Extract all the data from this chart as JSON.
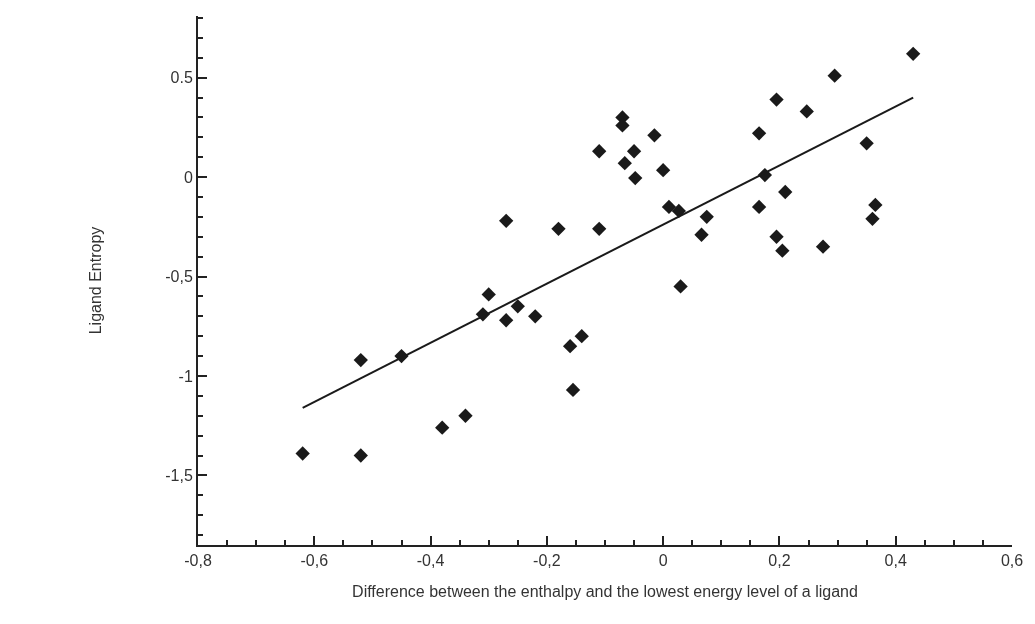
{
  "chart_data": {
    "type": "scatter",
    "xlabel": "Difference between the enthalpy and the lowest energy level of a ligand",
    "ylabel": "Ligand Entropy",
    "x": [
      -0.62,
      -0.52,
      -0.52,
      -0.45,
      -0.38,
      -0.34,
      -0.3,
      -0.31,
      -0.27,
      -0.25,
      -0.22,
      -0.27,
      -0.18,
      -0.11,
      -0.16,
      -0.14,
      -0.155,
      -0.11,
      -0.07,
      -0.07,
      -0.05,
      -0.066,
      -0.048,
      -0.015,
      0.0,
      0.01,
      0.027,
      0.075,
      0.066,
      0.03,
      0.43,
      0.295,
      0.195,
      0.247,
      0.165,
      0.35,
      0.175,
      0.21,
      0.165,
      0.195,
      0.205,
      0.275,
      0.365,
      0.36
    ],
    "series": [
      {
        "color": "#1a1a1a",
        "marker": "diamond",
        "values": [
          -1.39,
          -1.4,
          -0.92,
          -0.9,
          -1.26,
          -1.2,
          -0.59,
          -0.69,
          -0.72,
          -0.65,
          -0.7,
          -0.22,
          -0.26,
          -0.26,
          -0.85,
          -0.8,
          -1.07,
          0.13,
          0.3,
          0.26,
          0.13,
          0.07,
          -0.005,
          0.21,
          0.035,
          -0.15,
          -0.17,
          -0.2,
          -0.29,
          -0.55,
          0.62,
          0.51,
          0.39,
          0.33,
          0.22,
          0.17,
          0.01,
          -0.075,
          -0.15,
          -0.3,
          -0.37,
          -0.35,
          -0.14,
          -0.21
        ]
      },
      {
        "type": "line",
        "color": "#1a1a1a",
        "x": [
          -0.62,
          0.43
        ],
        "values": [
          -1.16,
          0.4
        ]
      }
    ],
    "xlim": [
      -0.8,
      0.6
    ],
    "ylim": [
      -1.85,
      0.81
    ],
    "xticks": [
      {
        "value": -0.8,
        "label": "-0,8"
      },
      {
        "value": -0.75,
        "label": null
      },
      {
        "value": -0.7,
        "label": null
      },
      {
        "value": -0.65,
        "label": null
      },
      {
        "value": -0.6,
        "label": "-0,6"
      },
      {
        "value": -0.55,
        "label": null
      },
      {
        "value": -0.5,
        "label": null
      },
      {
        "value": -0.45,
        "label": null
      },
      {
        "value": -0.4,
        "label": "-0,4"
      },
      {
        "value": -0.35,
        "label": null
      },
      {
        "value": -0.3,
        "label": null
      },
      {
        "value": -0.25,
        "label": null
      },
      {
        "value": -0.2,
        "label": "-0,2"
      },
      {
        "value": -0.15,
        "label": null
      },
      {
        "value": -0.1,
        "label": null
      },
      {
        "value": -0.05,
        "label": null
      },
      {
        "value": 0,
        "label": "0"
      },
      {
        "value": 0.05,
        "label": null
      },
      {
        "value": 0.1,
        "label": null
      },
      {
        "value": 0.15,
        "label": null
      },
      {
        "value": 0.2,
        "label": "0,2"
      },
      {
        "value": 0.25,
        "label": null
      },
      {
        "value": 0.3,
        "label": null
      },
      {
        "value": 0.35,
        "label": null
      },
      {
        "value": 0.4,
        "label": "0,4"
      },
      {
        "value": 0.45,
        "label": null
      },
      {
        "value": 0.5,
        "label": null
      },
      {
        "value": 0.55,
        "label": null
      },
      {
        "value": 0.6,
        "label": "0,6"
      }
    ],
    "yticks": [
      {
        "value": -1.8,
        "label": null
      },
      {
        "value": -1.7,
        "label": null
      },
      {
        "value": -1.6,
        "label": null
      },
      {
        "value": -1.5,
        "label": "-1,5"
      },
      {
        "value": -1.4,
        "label": null
      },
      {
        "value": -1.3,
        "label": null
      },
      {
        "value": -1.2,
        "label": null
      },
      {
        "value": -1.1,
        "label": null
      },
      {
        "value": -1,
        "label": "-1"
      },
      {
        "value": -0.9,
        "label": null
      },
      {
        "value": -0.8,
        "label": null
      },
      {
        "value": -0.7,
        "label": null
      },
      {
        "value": -0.6,
        "label": null
      },
      {
        "value": -0.5,
        "label": "-0,5"
      },
      {
        "value": -0.4,
        "label": null
      },
      {
        "value": -0.3,
        "label": null
      },
      {
        "value": -0.2,
        "label": null
      },
      {
        "value": -0.1,
        "label": null
      },
      {
        "value": 0,
        "label": "0"
      },
      {
        "value": 0.1,
        "label": null
      },
      {
        "value": 0.2,
        "label": null
      },
      {
        "value": 0.3,
        "label": null
      },
      {
        "value": 0.4,
        "label": null
      },
      {
        "value": 0.5,
        "label": "0.5"
      },
      {
        "value": 0.6,
        "label": null
      },
      {
        "value": 0.7,
        "label": null
      },
      {
        "value": 0.8,
        "label": null
      }
    ]
  }
}
